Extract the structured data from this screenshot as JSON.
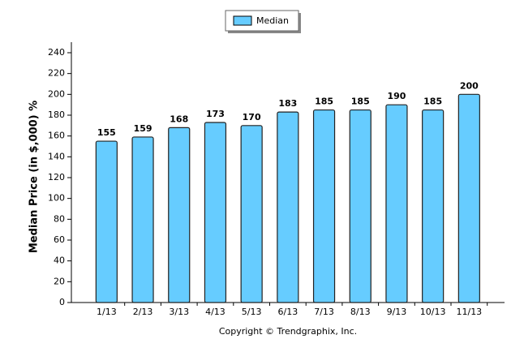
{
  "chart_data": {
    "type": "bar",
    "y_label": "Median Price (in $,000) %",
    "copyright": "Copyright © Trendgraphix, Inc.",
    "categories": [
      "1/13",
      "2/13",
      "3/13",
      "4/13",
      "5/13",
      "6/13",
      "7/13",
      "8/13",
      "9/13",
      "10/13",
      "11/13"
    ],
    "series": [
      {
        "name": "Median",
        "color": "#66ccff",
        "values": [
          155,
          159,
          168,
          173,
          170,
          183,
          185,
          185,
          190,
          185,
          200
        ]
      }
    ],
    "ylim": [
      0,
      240
    ],
    "yticks": [
      0,
      20,
      40,
      60,
      80,
      100,
      120,
      140,
      160,
      180,
      200,
      220,
      240
    ],
    "legend": "top"
  }
}
